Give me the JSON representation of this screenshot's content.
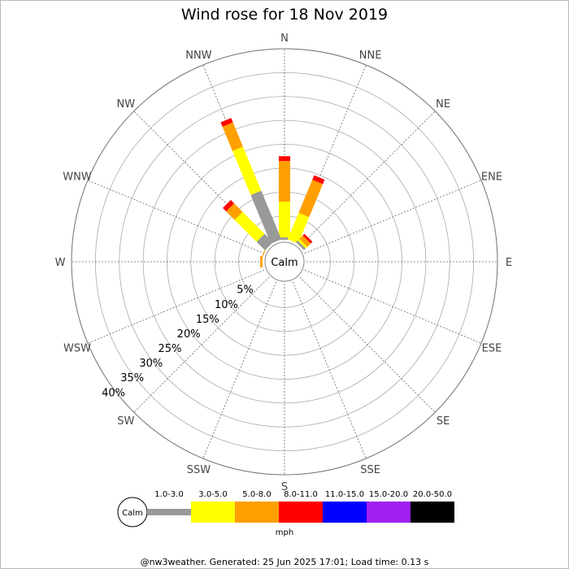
{
  "chart_data": {
    "type": "wind-rose",
    "title": "Wind rose for 18 Nov 2019",
    "directions": [
      "N",
      "NNE",
      "NE",
      "ENE",
      "E",
      "ESE",
      "SE",
      "SSE",
      "S",
      "SSW",
      "SW",
      "WSW",
      "W",
      "WNW",
      "NW",
      "NNW"
    ],
    "ring_labels": [
      "5%",
      "10%",
      "15%",
      "20%",
      "25%",
      "30%",
      "35%",
      "40%"
    ],
    "rlim": [
      0,
      40
    ],
    "calm_label": "Calm",
    "unit_label": "mph",
    "speed_bins": [
      {
        "label": "1.0-3.0",
        "color": "#999999"
      },
      {
        "label": "3.0-5.0",
        "color": "#ffff00"
      },
      {
        "label": "5.0-8.0",
        "color": "#ff9f00"
      },
      {
        "label": "8.0-11.0",
        "color": "#ff0000"
      },
      {
        "label": "11.0-15.0",
        "color": "#0000ff"
      },
      {
        "label": "15.0-20.0",
        "color": "#a020f0"
      },
      {
        "label": "20.0-50.0",
        "color": "#000000"
      }
    ],
    "series": [
      {
        "direction": "N",
        "segments": [
          0.5,
          7.5,
          8.5,
          1.0,
          0,
          0,
          0
        ]
      },
      {
        "direction": "NNE",
        "segments": [
          0.0,
          6.0,
          7.5,
          1.0,
          0,
          0,
          0
        ]
      },
      {
        "direction": "NE",
        "segments": [
          0.5,
          0.5,
          1.0,
          0.5,
          0,
          0,
          0
        ]
      },
      {
        "direction": "W",
        "segments": [
          0.0,
          0.0,
          0.5,
          0.0,
          0,
          0,
          0
        ]
      },
      {
        "direction": "WNW",
        "segments": [
          0.0,
          0.0,
          0.2,
          0.0,
          0,
          0,
          0
        ]
      },
      {
        "direction": "NW",
        "segments": [
          2.5,
          6.5,
          2.5,
          1.0,
          0,
          0,
          0
        ]
      },
      {
        "direction": "NNW",
        "segments": [
          11.0,
          10.0,
          5.5,
          1.0,
          0,
          0,
          0
        ]
      }
    ]
  },
  "footer": "@nw3weather. Generated: 25 Jun 2025 17:01; Load time: 0.13 s"
}
